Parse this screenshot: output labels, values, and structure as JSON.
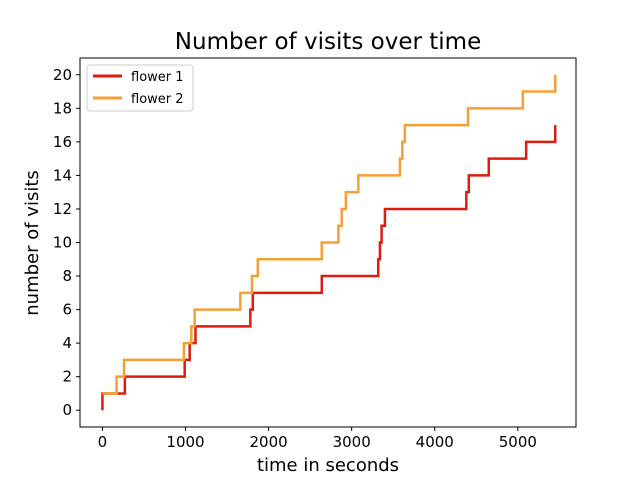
{
  "chart_data": {
    "type": "line",
    "title": "Number of visits over time",
    "xlabel": "time in seconds",
    "ylabel": "number of visits",
    "xlim": [
      -270,
      5700
    ],
    "ylim": [
      -1,
      21
    ],
    "xticks": [
      0,
      1000,
      2000,
      3000,
      4000,
      5000
    ],
    "yticks": [
      0,
      2,
      4,
      6,
      8,
      10,
      12,
      14,
      16,
      18,
      20
    ],
    "grid": false,
    "legend_position": "top-left",
    "step": "post",
    "series": [
      {
        "name": "flower 1",
        "color": "#dd1c10",
        "x": [
          0,
          0,
          170,
          270,
          980,
          990,
          1010,
          1050,
          1120,
          1690,
          1780,
          1810,
          2600,
          2640,
          3320,
          3340,
          3360,
          3400,
          4380,
          4410,
          4650,
          5100,
          5450
        ],
        "y": [
          0,
          1,
          1,
          2,
          2,
          3,
          3,
          4,
          5,
          5,
          6,
          7,
          7,
          8,
          9,
          10,
          11,
          12,
          13,
          14,
          15,
          16,
          17
        ]
      },
      {
        "name": "flower 2",
        "color": "#f5a036",
        "x": [
          0,
          170,
          260,
          720,
          980,
          1070,
          1110,
          1520,
          1660,
          1800,
          1870,
          2640,
          2840,
          2880,
          2930,
          3080,
          3580,
          3610,
          3640,
          4400,
          5060,
          5450
        ],
        "y": [
          1,
          2,
          3,
          3,
          4,
          5,
          6,
          6,
          7,
          8,
          9,
          10,
          11,
          12,
          13,
          14,
          15,
          16,
          17,
          18,
          19,
          20
        ]
      }
    ]
  }
}
